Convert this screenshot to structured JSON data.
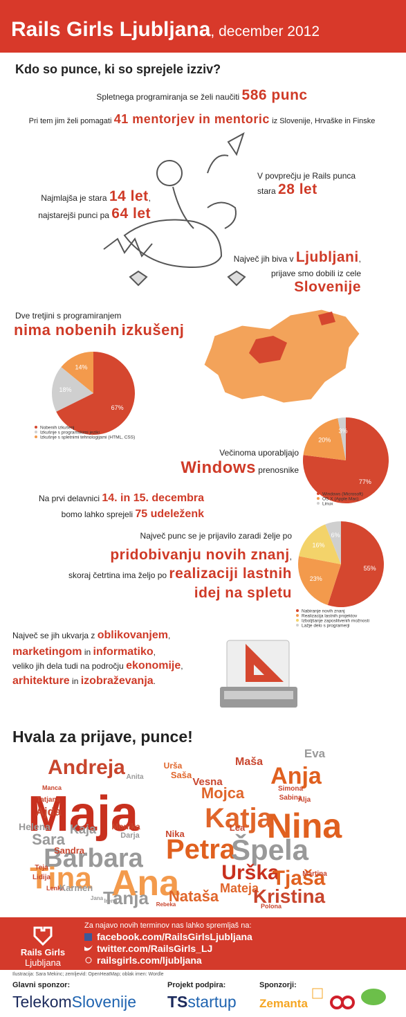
{
  "header": {
    "title": "Rails Girls Ljubljana",
    "subtitle": ", december 2012"
  },
  "intro_heading": "Kdo so punce, ki so sprejele izziv?",
  "facts": {
    "learn": [
      "Spletnega programiranja se želi naučiti",
      "586 punc"
    ],
    "mentors": [
      "Pri tem jim želi pomagati",
      "41 mentorjev in mentoric",
      "iz Slovenije, Hrvaške in Finske"
    ],
    "avg": [
      "V povprečju je Rails punca",
      "stara",
      "28 let"
    ],
    "age": [
      "Najmlajša je stara",
      "14 let",
      ",",
      "najstarejši punci pa",
      "64 let"
    ],
    "city": [
      "Največ jih biva v",
      "Ljubljani",
      ",",
      "prijave smo dobili iz cele",
      "Slovenije"
    ],
    "experience": [
      "Dve tretjini s programiranjem",
      "nima nobenih izkušenj"
    ],
    "windows": [
      "Večinoma uporabljajo",
      "Windows",
      "prenosnike"
    ],
    "workshop": [
      "Na prvi delavnici",
      "14. in 15. decembra",
      "bomo lahko sprejeli",
      "75 udeleženk"
    ],
    "motive": [
      "Največ punc se je prijavilo zaradi želje po",
      "pridobivanju novih znanj",
      ",",
      "skoraj četrtina ima željo po",
      "realizaciji lastnih",
      "idej na spletu"
    ],
    "fields": [
      "Največ se jih ukvarja z",
      "oblikovanjem",
      ",",
      "marketingom",
      "in",
      "informatiko",
      ",",
      "veliko jih dela tudi na področju",
      "ekonomije",
      ",",
      "arhitekture",
      "in",
      "izobraževanja",
      "."
    ]
  },
  "chart_data": [
    {
      "type": "pie",
      "categories": [
        "Nobenih izkušenj",
        "Izkušnje s programskimi jeziki",
        "Izkušnje s spletnimi tehnologijami (HTML, CSS)"
      ],
      "values": [
        67,
        18,
        14
      ],
      "value_labels": [
        "67%",
        "18%",
        "14%"
      ],
      "colors": [
        "#d5472f",
        "#cfcfcf",
        "#f39a4c"
      ]
    },
    {
      "type": "pie",
      "categories": [
        "Windows (Microsoft)",
        "OS X (Apple Mac)",
        "Linux"
      ],
      "values": [
        77,
        20,
        3
      ],
      "value_labels": [
        "77%",
        "20%",
        "3%"
      ],
      "colors": [
        "#d5472f",
        "#f39a4c",
        "#cfcfcf"
      ]
    },
    {
      "type": "pie",
      "categories": [
        "Nabiranje novih znanj",
        "Realizacija lastnih projektov",
        "Izboljšanje zaposlitvenih možnosti",
        "Lažje delo s programerji"
      ],
      "values": [
        55,
        23,
        16,
        6
      ],
      "value_labels": [
        "55%",
        "23%",
        "16%",
        "6%"
      ],
      "colors": [
        "#d5472f",
        "#f39a4c",
        "#f3d36a",
        "#cfcfcf"
      ]
    }
  ],
  "thanks": "Hvala za prijave, punce!",
  "cloud": [
    "Andreja",
    "Urša",
    "Saša",
    "Eva",
    "Anja",
    "Maša",
    "Vesna",
    "Mojca",
    "Simona",
    "Sabina",
    "Maja",
    "Nina",
    "Katja",
    "Ajda",
    "Tatjana",
    "Manca",
    "Helena",
    "Kaja",
    "Monika",
    "Darja",
    "Sara",
    "Lea",
    "Nika",
    "Petra",
    "Špela",
    "Barbara",
    "Sandra",
    "Urška",
    "Tjaša",
    "Tina",
    "Ana",
    "Mateja",
    "Teja",
    "Lidija",
    "Lenka",
    "Karmen",
    "Tanja",
    "Nataša",
    "Kristina",
    "Polona",
    "Rebeka",
    "Anita",
    "Martina",
    "Alja",
    "Jana",
    "Irena"
  ],
  "footer": {
    "brand": "Rails Girls",
    "city": "Ljubljana",
    "follow": "Za najavo novih terminov nas lahko spremljaš na:",
    "links": [
      "facebook.com/RailsGirlsLjubljana",
      "twitter.com/RailsGirls_LJ",
      "railsgirls.com/ljubljana"
    ],
    "credits": "Ilustracija: Sara Mekinc; zemljevid: OpenHeatMap; oblak imen: Wordle"
  },
  "sponsors": {
    "main_label": "Glavni sponzor:",
    "main": [
      "Telekom",
      "Slovenije"
    ],
    "project_label": "Projekt podpira:",
    "project": [
      "TS",
      "startup"
    ],
    "sponsors_label": "Sponzorji:",
    "sponsors": [
      "Zemanta"
    ]
  }
}
